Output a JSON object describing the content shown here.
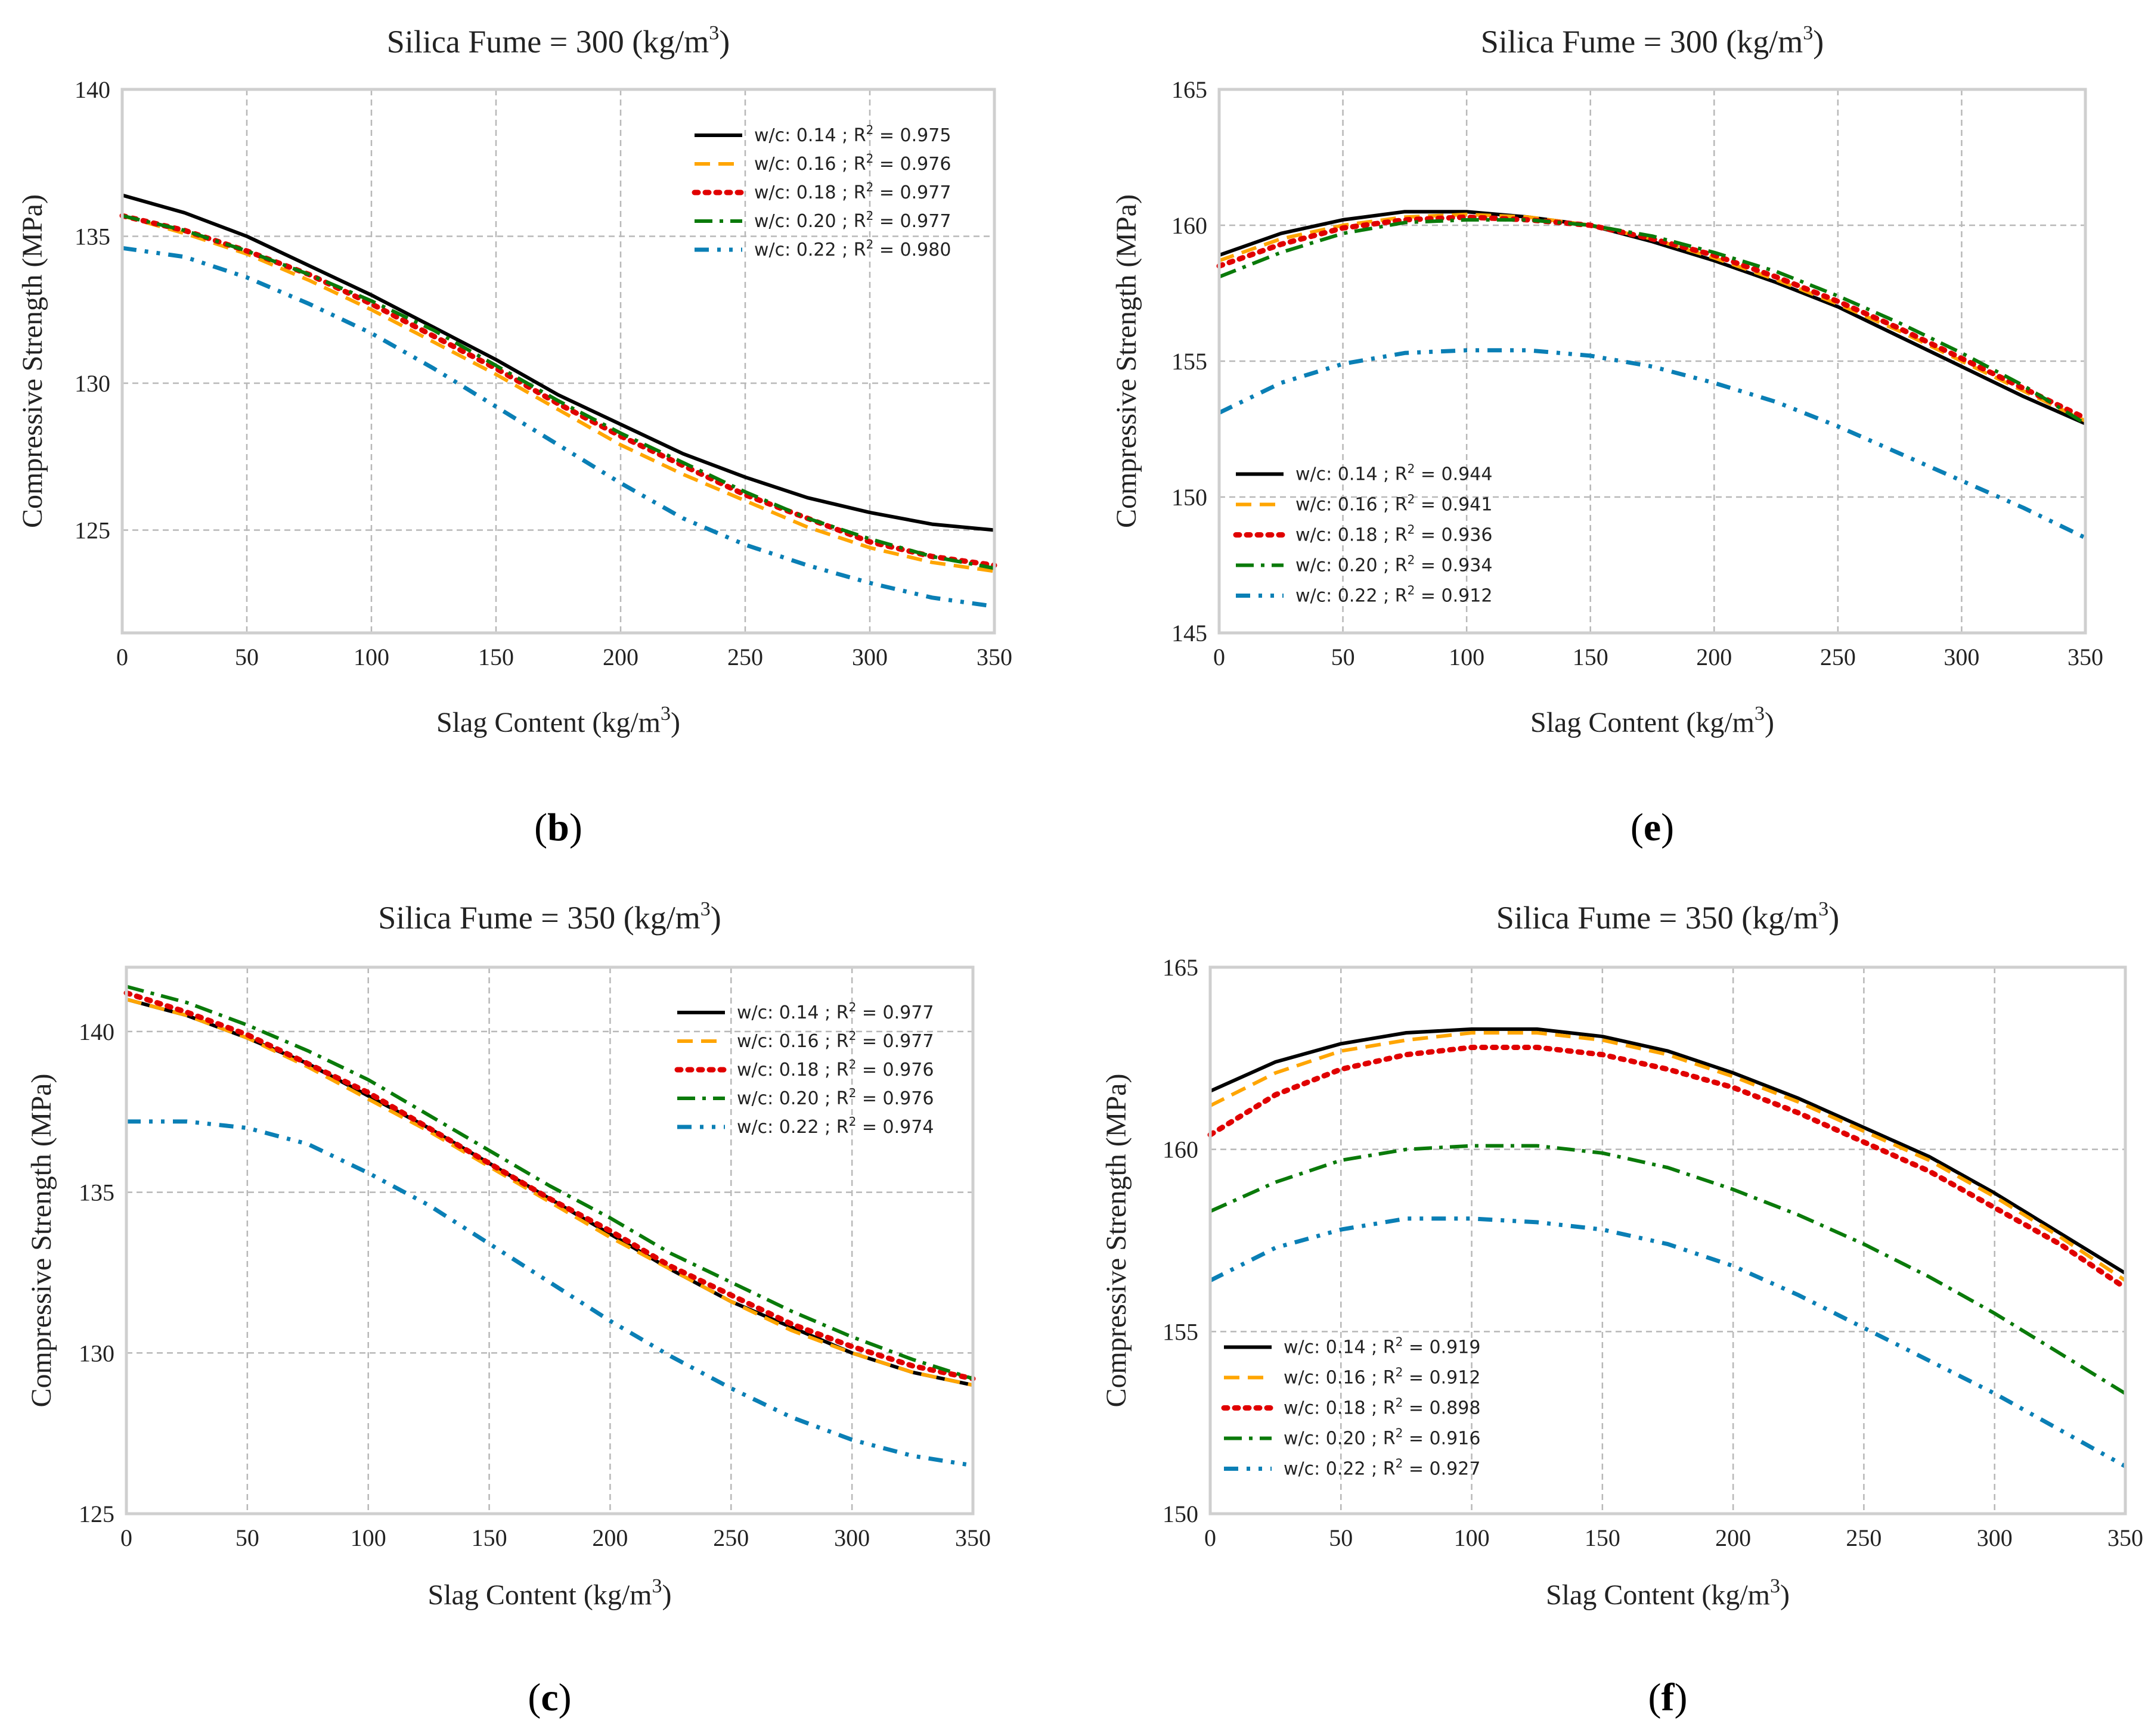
{
  "colors": {
    "wc014": "#000000",
    "wc016": "#FFA500",
    "wc018": "#E00000",
    "wc020": "#0A7A0A",
    "wc022": "#0A7FB5"
  },
  "chart_data": [
    {
      "id": "b",
      "type": "line",
      "caption_letter": "b",
      "title": "Silica Fume = 300 (kg/m",
      "title_sup": "3",
      "title_close": ")",
      "xlabel": "Slag Content (kg/m",
      "xlabel_sup": "3",
      "xlabel_close": ")",
      "ylabel": "Compressive Strength (MPa)",
      "xlim": [
        0,
        350
      ],
      "ylim": [
        121.5,
        140
      ],
      "xticks": [
        "0",
        "50",
        "100",
        "150",
        "200",
        "250",
        "300",
        "350"
      ],
      "yticks": [
        "125",
        "130",
        "135",
        "140"
      ],
      "legend_position": "top-right",
      "x": [
        0,
        25,
        50,
        75,
        100,
        125,
        150,
        175,
        200,
        225,
        250,
        275,
        300,
        325,
        350
      ],
      "series": [
        {
          "name": "w/c: 0.14 ; R",
          "r2": " = 0.975",
          "style": "solid",
          "color_key": "wc014",
          "values": [
            136.4,
            135.8,
            135.0,
            134.0,
            133.0,
            131.9,
            130.8,
            129.6,
            128.6,
            127.6,
            126.8,
            126.1,
            125.6,
            125.2,
            125.0
          ]
        },
        {
          "name": "w/c: 0.16 ; R",
          "r2": " = 0.976",
          "style": "dashed",
          "color_key": "wc016",
          "values": [
            135.7,
            135.1,
            134.4,
            133.5,
            132.5,
            131.4,
            130.3,
            129.1,
            127.9,
            126.9,
            126.0,
            125.1,
            124.4,
            123.9,
            123.6
          ]
        },
        {
          "name": "w/c: 0.18 ; R",
          "r2": " = 0.977",
          "style": "dotted",
          "color_key": "wc018",
          "values": [
            135.7,
            135.2,
            134.5,
            133.7,
            132.7,
            131.6,
            130.5,
            129.3,
            128.2,
            127.2,
            126.2,
            125.4,
            124.6,
            124.1,
            123.8
          ]
        },
        {
          "name": "w/c: 0.20 ; R",
          "r2": " = 0.977",
          "style": "dashdot",
          "color_key": "wc020",
          "values": [
            135.7,
            135.2,
            134.5,
            133.7,
            132.8,
            131.8,
            130.6,
            129.4,
            128.3,
            127.3,
            126.3,
            125.4,
            124.7,
            124.1,
            123.7
          ]
        },
        {
          "name": "w/c: 0.22 ; R",
          "r2": " = 0.980",
          "style": "dashdotdot",
          "color_key": "wc022",
          "values": [
            134.6,
            134.3,
            133.6,
            132.7,
            131.7,
            130.5,
            129.2,
            127.9,
            126.6,
            125.4,
            124.5,
            123.8,
            123.2,
            122.7,
            122.4
          ]
        }
      ]
    },
    {
      "id": "e",
      "type": "line",
      "caption_letter": "e",
      "title": "Silica Fume = 300 (kg/m",
      "title_sup": "3",
      "title_close": ")",
      "xlabel": "Slag Content (kg/m",
      "xlabel_sup": "3",
      "xlabel_close": ")",
      "ylabel": "Compressive Strength (MPa)",
      "xlim": [
        0,
        350
      ],
      "ylim": [
        145,
        165
      ],
      "xticks": [
        "0",
        "50",
        "100",
        "150",
        "200",
        "250",
        "300",
        "350"
      ],
      "yticks": [
        "145",
        "150",
        "155",
        "160",
        "165"
      ],
      "legend_position": "lower-left",
      "x": [
        0,
        25,
        50,
        75,
        100,
        125,
        150,
        175,
        200,
        225,
        250,
        275,
        300,
        325,
        350
      ],
      "series": [
        {
          "name": "w/c: 0.14 ; R",
          "r2": " = 0.944",
          "style": "solid",
          "color_key": "wc014",
          "values": [
            158.9,
            159.7,
            160.2,
            160.5,
            160.5,
            160.3,
            160.0,
            159.4,
            158.7,
            157.9,
            157.0,
            155.9,
            154.8,
            153.7,
            152.7
          ]
        },
        {
          "name": "w/c: 0.16 ; R",
          "r2": " = 0.941",
          "style": "dashed",
          "color_key": "wc016",
          "values": [
            158.7,
            159.5,
            160.0,
            160.3,
            160.4,
            160.3,
            160.0,
            159.5,
            158.8,
            158.0,
            157.1,
            156.1,
            155.0,
            153.9,
            152.8
          ]
        },
        {
          "name": "w/c: 0.18 ; R",
          "r2": " = 0.936",
          "style": "dotted",
          "color_key": "wc018",
          "values": [
            158.5,
            159.3,
            159.9,
            160.2,
            160.3,
            160.2,
            160.0,
            159.5,
            158.9,
            158.1,
            157.2,
            156.2,
            155.1,
            154.0,
            152.9
          ]
        },
        {
          "name": "w/c: 0.20 ; R",
          "r2": " = 0.934",
          "style": "dashdot",
          "color_key": "wc020",
          "values": [
            158.1,
            159.0,
            159.7,
            160.1,
            160.2,
            160.2,
            160.0,
            159.6,
            159.0,
            158.3,
            157.4,
            156.4,
            155.3,
            154.1,
            152.7
          ]
        },
        {
          "name": "w/c: 0.22 ; R",
          "r2": " = 0.912",
          "style": "dashdotdot",
          "color_key": "wc022",
          "values": [
            153.1,
            154.2,
            154.9,
            155.3,
            155.4,
            155.4,
            155.2,
            154.8,
            154.2,
            153.5,
            152.6,
            151.6,
            150.6,
            149.6,
            148.5
          ]
        }
      ]
    },
    {
      "id": "c",
      "type": "line",
      "caption_letter": "c",
      "title": "Silica Fume = 350 (kg/m",
      "title_sup": "3",
      "title_close": ")",
      "xlabel": "Slag Content (kg/m",
      "xlabel_sup": "3",
      "xlabel_close": ")",
      "ylabel": "Compressive Strength (MPa)",
      "xlim": [
        0,
        350
      ],
      "ylim": [
        125,
        142
      ],
      "xticks": [
        "0",
        "50",
        "100",
        "150",
        "200",
        "250",
        "300",
        "350"
      ],
      "yticks": [
        "125",
        "130",
        "135",
        "140"
      ],
      "legend_position": "top-right",
      "x": [
        0,
        25,
        50,
        75,
        100,
        125,
        150,
        175,
        200,
        225,
        250,
        275,
        300,
        325,
        350
      ],
      "series": [
        {
          "name": "w/c: 0.14 ; R",
          "r2": " = 0.977",
          "style": "solid",
          "color_key": "wc014",
          "values": [
            141.0,
            140.5,
            139.8,
            139.0,
            138.0,
            137.0,
            135.9,
            134.8,
            133.7,
            132.6,
            131.6,
            130.8,
            130.0,
            129.4,
            129.0
          ]
        },
        {
          "name": "w/c: 0.16 ; R",
          "r2": " = 0.977",
          "style": "dashed",
          "color_key": "wc016",
          "values": [
            141.0,
            140.5,
            139.8,
            138.9,
            137.9,
            136.9,
            135.8,
            134.7,
            133.6,
            132.6,
            131.6,
            130.7,
            130.0,
            129.4,
            129.0
          ]
        },
        {
          "name": "w/c: 0.18 ; R",
          "r2": " = 0.976",
          "style": "dotted",
          "color_key": "wc018",
          "values": [
            141.2,
            140.6,
            139.9,
            139.0,
            138.1,
            137.0,
            135.9,
            134.8,
            133.8,
            132.7,
            131.8,
            130.9,
            130.2,
            129.6,
            129.2
          ]
        },
        {
          "name": "w/c: 0.20 ; R",
          "r2": " = 0.976",
          "style": "dashdot",
          "color_key": "wc020",
          "values": [
            141.4,
            140.9,
            140.2,
            139.4,
            138.5,
            137.4,
            136.3,
            135.2,
            134.2,
            133.1,
            132.2,
            131.3,
            130.5,
            129.8,
            129.2
          ]
        },
        {
          "name": "w/c: 0.22 ; R",
          "r2": " = 0.974",
          "style": "dashdotdot",
          "color_key": "wc022",
          "values": [
            137.2,
            137.2,
            137.0,
            136.5,
            135.6,
            134.6,
            133.4,
            132.2,
            131.0,
            129.9,
            128.9,
            128.0,
            127.3,
            126.8,
            126.5
          ]
        }
      ]
    },
    {
      "id": "f",
      "type": "line",
      "caption_letter": "f",
      "title": "Silica Fume = 350 (kg/m",
      "title_sup": "3",
      "title_close": ")",
      "xlabel": "Slag Content (kg/m",
      "xlabel_sup": "3",
      "xlabel_close": ")",
      "ylabel": "Compressive Strength (MPa)",
      "xlim": [
        0,
        350
      ],
      "ylim": [
        150,
        165
      ],
      "xticks": [
        "0",
        "50",
        "100",
        "150",
        "200",
        "250",
        "300",
        "350"
      ],
      "yticks": [
        "150",
        "155",
        "160",
        "165"
      ],
      "legend_position": "lower-left",
      "x": [
        0,
        25,
        50,
        75,
        100,
        125,
        150,
        175,
        200,
        225,
        250,
        275,
        300,
        325,
        350
      ],
      "series": [
        {
          "name": "w/c: 0.14 ; R",
          "r2": " = 0.919",
          "style": "solid",
          "color_key": "wc014",
          "values": [
            161.6,
            162.4,
            162.9,
            163.2,
            163.3,
            163.3,
            163.1,
            162.7,
            162.1,
            161.4,
            160.6,
            159.8,
            158.8,
            157.7,
            156.6
          ]
        },
        {
          "name": "w/c: 0.16 ; R",
          "r2": " = 0.912",
          "style": "dashed",
          "color_key": "wc016",
          "values": [
            161.2,
            162.1,
            162.7,
            163.0,
            163.2,
            163.2,
            163.0,
            162.6,
            162.0,
            161.3,
            160.5,
            159.7,
            158.7,
            157.6,
            156.4
          ]
        },
        {
          "name": "w/c: 0.18 ; R",
          "r2": " = 0.898",
          "style": "dotted",
          "color_key": "wc018",
          "values": [
            160.4,
            161.5,
            162.2,
            162.6,
            162.8,
            162.8,
            162.6,
            162.2,
            161.7,
            161.0,
            160.2,
            159.4,
            158.4,
            157.4,
            156.2
          ]
        },
        {
          "name": "w/c: 0.20 ; R",
          "r2": " = 0.916",
          "style": "dashdot",
          "color_key": "wc020",
          "values": [
            158.3,
            159.1,
            159.7,
            160.0,
            160.1,
            160.1,
            159.9,
            159.5,
            158.9,
            158.2,
            157.4,
            156.5,
            155.5,
            154.4,
            153.3
          ]
        },
        {
          "name": "w/c: 0.22 ; R",
          "r2": " = 0.927",
          "style": "dashdotdot",
          "color_key": "wc022",
          "values": [
            156.4,
            157.3,
            157.8,
            158.1,
            158.1,
            158.0,
            157.8,
            157.4,
            156.8,
            156.0,
            155.1,
            154.2,
            153.3,
            152.3,
            151.3
          ]
        }
      ]
    }
  ]
}
